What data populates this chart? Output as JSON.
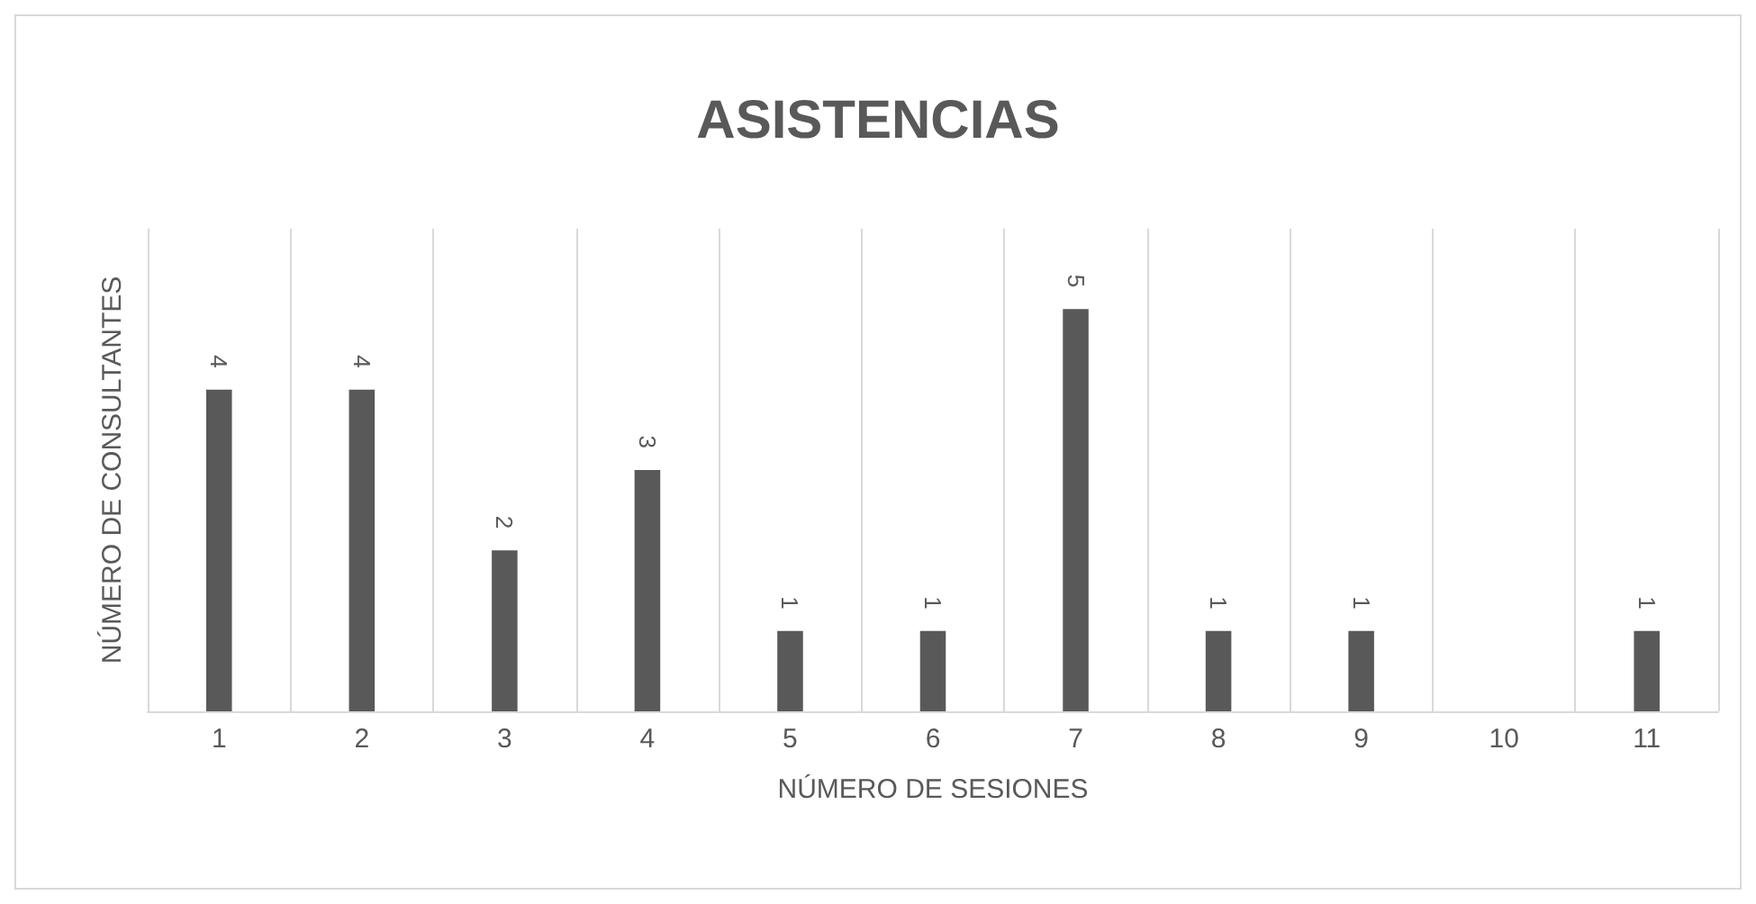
{
  "chart_data": {
    "type": "bar",
    "title": "ASISTENCIAS",
    "xlabel": "NÚMERO DE SESIONES",
    "ylabel": "NÚMERO DE CONSULTANTES",
    "categories": [
      "1",
      "2",
      "3",
      "4",
      "5",
      "6",
      "7",
      "8",
      "9",
      "10",
      "11"
    ],
    "values": [
      4,
      4,
      2,
      3,
      1,
      1,
      5,
      1,
      1,
      null,
      1
    ],
    "color": "#595959",
    "data_labels": true,
    "grid": "x"
  }
}
